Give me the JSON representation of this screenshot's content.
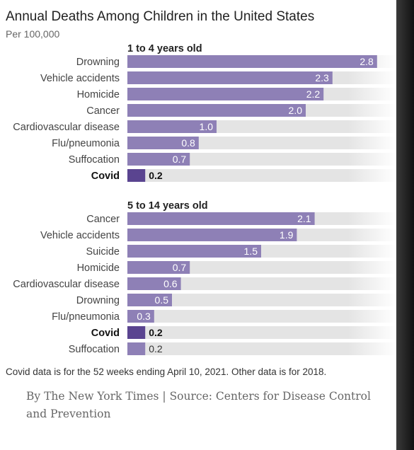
{
  "colors": {
    "bar": "#8e80b6",
    "highlight": "#5a4490",
    "track": "#e4e4e4",
    "value_on_bar": "#ffffff",
    "value_off_bar": "#333333"
  },
  "header": {
    "title": "Annual Deaths Among Children in the United States",
    "subtitle": "Per 100,000"
  },
  "footer": {
    "note": "Covid data is for the 52 weeks ending April 10, 2021. Other data is for 2018.",
    "byline": "By The New York Times | Source: Centers for Disease Control and Prevention"
  },
  "chart_data": [
    {
      "type": "bar",
      "orientation": "horizontal",
      "title": "1 to 4 years old",
      "xlim": [
        0,
        3.0
      ],
      "categories": [
        "Drowning",
        "Vehicle accidents",
        "Homicide",
        "Cancer",
        "Cardiovascular disease",
        "Flu/pneumonia",
        "Suffocation",
        "Covid"
      ],
      "values": [
        2.8,
        2.3,
        2.2,
        2.0,
        1.0,
        0.8,
        0.7,
        0.2
      ],
      "labels": [
        "2.8",
        "2.3",
        "2.2",
        "2.0",
        "1.0",
        "0.8",
        "0.7",
        "0.2"
      ],
      "highlight": [
        "Covid"
      ]
    },
    {
      "type": "bar",
      "orientation": "horizontal",
      "title": "5 to 14 years old",
      "xlim": [
        0,
        3.0
      ],
      "categories": [
        "Cancer",
        "Vehicle accidents",
        "Suicide",
        "Homicide",
        "Cardiovascular disease",
        "Drowning",
        "Flu/pneumonia",
        "Covid",
        "Suffocation"
      ],
      "values": [
        2.1,
        1.9,
        1.5,
        0.7,
        0.6,
        0.5,
        0.3,
        0.2,
        0.2
      ],
      "labels": [
        "2.1",
        "1.9",
        "1.5",
        "0.7",
        "0.6",
        "0.5",
        "0.3",
        "0.2",
        "0.2"
      ],
      "highlight": [
        "Covid"
      ]
    }
  ]
}
